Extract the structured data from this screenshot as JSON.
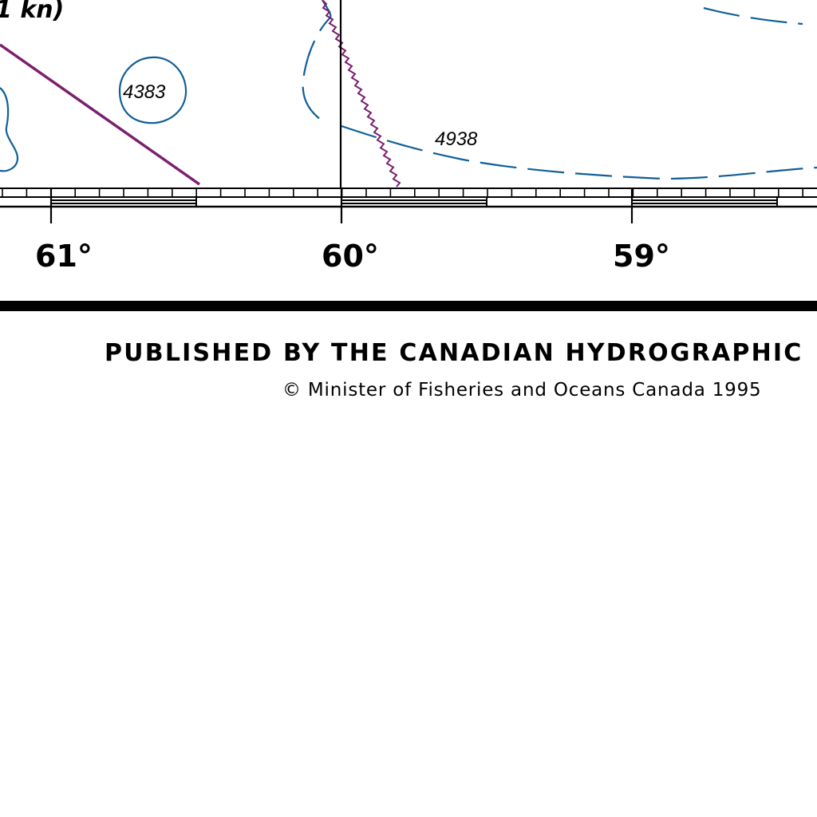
{
  "map": {
    "current_label": "1 kn)",
    "soundings": [
      {
        "id": "sounding-4383",
        "value": "4383"
      },
      {
        "id": "sounding-4938",
        "value": "4938"
      }
    ],
    "longitudes": [
      "61°",
      "60°",
      "59°"
    ],
    "publisher": "PUBLISHED BY THE CANADIAN HYDROGRAPHIC",
    "copyright": "© Minister of Fisheries and Oceans Canada 1995",
    "colors": {
      "contour": "#0f5f9a",
      "route_line": "#7a1f6e",
      "boundary_line": "#7a1f6e",
      "border": "#000000",
      "background": "#ffffff"
    }
  }
}
